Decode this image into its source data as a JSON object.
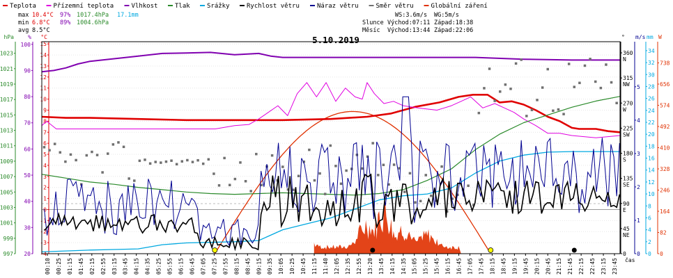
{
  "chart_data": {
    "type": "line",
    "title": "5.10.2019",
    "xlabel": "čas",
    "legend": {
      "placement": "top",
      "items": [
        {
          "label": "Teplota",
          "color": "#e00000"
        },
        {
          "label": "Přízemní teplota",
          "color": "#e000e0"
        },
        {
          "label": "Vlhkost",
          "color": "#8000b0"
        },
        {
          "label": "Tlak",
          "color": "#2a8a2a"
        },
        {
          "label": "Srážky",
          "color": "#00a8e0"
        },
        {
          "label": "Rychlost větru",
          "color": "#000000"
        },
        {
          "label": "Náraz větru",
          "color": "#000090"
        },
        {
          "label": "Směr větru",
          "color": "#707070"
        },
        {
          "label": "Globální záření",
          "color": "#e03000"
        }
      ]
    },
    "stats": {
      "max": {
        "label": "max",
        "temp": "10.4°C",
        "hum": "97%",
        "press": "1017.4hPa",
        "rain": "17.1mm"
      },
      "min": {
        "label": "min",
        "temp": "6.8°C",
        "hum": "89%",
        "press": "1004.6hPa"
      },
      "avg": {
        "label": "avg",
        "temp": "8.5°C"
      }
    },
    "info": {
      "ws": "WS:3.6m/s",
      "wg": "WG:5m/s",
      "sun_label": "Slunce",
      "sun_rise": "Východ:07:11",
      "sun_set": "Západ:18:38",
      "moon_label": "Měsíc",
      "moon_rise": "Východ:13:44",
      "moon_set": "Západ:22:06"
    },
    "axes": {
      "hpa": {
        "unit": "hPa",
        "color": "#2a8a2a",
        "ticks": [
          997,
          999,
          1001,
          1003,
          1005,
          1007,
          1009,
          1011,
          1013,
          1015,
          1017,
          1019,
          1021,
          1023
        ]
      },
      "pct": {
        "unit": "%",
        "color": "#8000b0",
        "ticks": [
          20,
          30,
          40,
          50,
          60,
          70,
          80,
          90,
          100
        ]
      },
      "temp": {
        "unit": "°C",
        "color": "#e00000",
        "ticks": [
          -4,
          -3,
          -2,
          -1,
          0,
          1,
          2,
          3,
          4,
          5,
          6,
          7,
          8,
          9,
          10,
          11,
          12,
          13,
          14,
          15
        ]
      },
      "dir": {
        "unit": "°",
        "ticks": [
          {
            "v": "0",
            "c": ""
          },
          {
            "v": "45",
            "c": "NE"
          },
          {
            "v": "90",
            "c": "E"
          },
          {
            "v": "135",
            "c": "SE"
          },
          {
            "v": "180",
            "c": "S"
          },
          {
            "v": "225",
            "c": "SW"
          },
          {
            "v": "270",
            "c": "W"
          },
          {
            "v": "315",
            "c": "NW"
          },
          {
            "v": "360",
            "c": "N"
          }
        ]
      },
      "ms": {
        "unit": "m/s",
        "color": "#000090",
        "ticks": [
          0,
          1,
          2,
          3,
          4,
          5
        ]
      },
      "mm": {
        "unit": "mm",
        "color": "#00a8e0",
        "ticks": [
          0,
          2,
          4,
          6,
          8,
          10,
          12,
          14,
          16,
          18,
          20,
          22,
          24,
          26,
          28,
          30,
          32,
          34
        ]
      },
      "wm": {
        "unit": "W",
        "color": "#e03000",
        "ticks": [
          0,
          82,
          164,
          246,
          328,
          410,
          492,
          574,
          656,
          738
        ]
      }
    },
    "x_ticks": [
      "00:10",
      "00:25",
      "01:15",
      "01:45",
      "02:15",
      "02:55",
      "03:15",
      "03:45",
      "04:15",
      "04:35",
      "05:25",
      "05:55",
      "06:15",
      "06:45",
      "07:05",
      "07:25",
      "07:55",
      "08:15",
      "08:45",
      "09:15",
      "09:35",
      "10:05",
      "10:25",
      "10:45",
      "11:15",
      "11:40",
      "12:05",
      "12:35",
      "12:55",
      "13:20",
      "13:45",
      "14:15",
      "14:35",
      "15:05",
      "15:25",
      "15:45",
      "16:15",
      "16:45",
      "17:05",
      "17:45",
      "18:15",
      "18:45",
      "19:15",
      "19:45",
      "20:15",
      "20:45",
      "21:15",
      "21:45",
      "22:15",
      "22:45",
      "23:15",
      "23:45"
    ],
    "series": [
      {
        "name": "Teplota",
        "axis": "temp",
        "color": "#e00000",
        "width": 2.6,
        "x": [
          0,
          1,
          2,
          4,
          6,
          8,
          10,
          12,
          13.5,
          14.5,
          15.5,
          16.5,
          17.3,
          17.9,
          18.5,
          19,
          19.5,
          20,
          20.5,
          21,
          21.5,
          22,
          22.3,
          23,
          23.5,
          24
        ],
        "y": [
          8.4,
          8.3,
          8.3,
          8.2,
          8.1,
          8.1,
          8.1,
          8.2,
          8.4,
          8.7,
          9.3,
          9.7,
          10.2,
          10.4,
          10.4,
          9.7,
          9.8,
          9.5,
          9.0,
          8.4,
          8.0,
          7.4,
          7.3,
          7.3,
          7.1,
          7.0
        ]
      },
      {
        "name": "Přízemní teplota",
        "axis": "temp",
        "color": "#e000e0",
        "width": 1,
        "x": [
          0,
          0.2,
          0.6,
          1.2,
          2,
          4,
          6,
          7.2,
          8,
          8.6,
          9,
          9.4,
          9.8,
          10.2,
          10.6,
          11,
          11.4,
          11.8,
          12.2,
          12.6,
          13,
          13.3,
          13.5,
          13.8,
          14.2,
          14.6,
          15,
          15.6,
          16.4,
          17,
          17.4,
          17.8,
          18.3,
          18.8,
          19.2,
          19.6,
          20,
          20.5,
          21,
          21.5,
          22,
          23,
          24
        ],
        "y": [
          7.6,
          8.0,
          7.3,
          7.3,
          7.3,
          7.3,
          7.3,
          7.3,
          7.6,
          7.7,
          8.2,
          8.8,
          9.4,
          8.5,
          10.5,
          11.5,
          10.2,
          11.5,
          9.8,
          11.0,
          10.2,
          10.0,
          11.5,
          10.5,
          9.6,
          9.8,
          9.4,
          9.2,
          9.0,
          9.4,
          9.8,
          10.2,
          9.2,
          9.6,
          9.2,
          8.8,
          8.2,
          7.6,
          6.9,
          6.9,
          6.7,
          6.5,
          6.7
        ]
      },
      {
        "name": "Vlhkost",
        "axis": "pct",
        "color": "#8000b0",
        "width": 2,
        "x": [
          0,
          0.5,
          1,
          1.5,
          2,
          3,
          4,
          5,
          6,
          7,
          8,
          9,
          9.5,
          10,
          12,
          14,
          16,
          18,
          20,
          22,
          24
        ],
        "y": [
          89.5,
          90,
          91,
          92.5,
          93.5,
          94.5,
          95.5,
          96.5,
          96.7,
          96.9,
          96,
          96.5,
          95.5,
          95,
          95,
          95,
          95,
          95,
          94.3,
          94,
          94
        ]
      },
      {
        "name": "Tlak",
        "axis": "hpa",
        "color": "#2a8a2a",
        "width": 1.2,
        "x": [
          0,
          1,
          2,
          3,
          4,
          5,
          6,
          7,
          8,
          9,
          10,
          11,
          12,
          13,
          14,
          15,
          16,
          17,
          18,
          19,
          20,
          21,
          22,
          23,
          24
        ],
        "y": [
          1007.3,
          1006.8,
          1006.3,
          1006.0,
          1005.6,
          1005.3,
          1005.0,
          1004.8,
          1004.7,
          1004.8,
          1004.9,
          1004.8,
          1004.7,
          1004.6,
          1004.8,
          1005.3,
          1006.5,
          1008.0,
          1010.5,
          1012.5,
          1014.0,
          1015.0,
          1016.0,
          1016.8,
          1017.4
        ]
      },
      {
        "name": "Srážky",
        "axis": "mm",
        "color": "#00a8e0",
        "width": 1.3,
        "x": [
          0,
          2,
          3,
          4,
          5,
          6,
          7,
          8,
          9,
          10,
          11,
          12,
          13,
          14,
          15,
          16,
          17,
          18,
          19,
          20,
          21,
          22,
          23,
          24
        ],
        "y": [
          0.3,
          0.6,
          0.7,
          0.8,
          1.5,
          1.8,
          1.9,
          2.0,
          2.2,
          4.0,
          5.0,
          6.0,
          7.5,
          9.0,
          9.7,
          10.0,
          11.0,
          13.5,
          15.5,
          16.5,
          17.0,
          17.1,
          17.1,
          17.1
        ]
      }
    ],
    "wind": {
      "unit": "m/s",
      "speed_max": 3.6,
      "gust_max": 5
    },
    "radiation": {
      "unit": "W",
      "sunrise_h": 7.18,
      "sunset_h": 18.63,
      "clear_sky_peak": 550,
      "measured": [
        {
          "x": 13.5,
          "y": 110
        },
        {
          "x": 14.2,
          "y": 180
        },
        {
          "x": 15.0,
          "y": 90
        },
        {
          "x": 16.0,
          "y": 60
        },
        {
          "x": 9.7,
          "y": 80
        },
        {
          "x": 10.7,
          "y": 130
        }
      ]
    }
  }
}
